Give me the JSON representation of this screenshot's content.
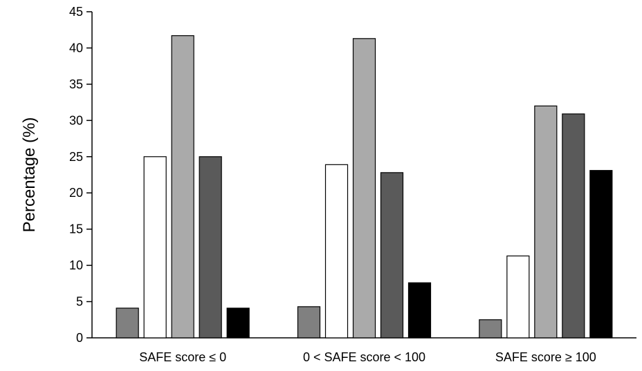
{
  "chart_data": {
    "type": "bar",
    "title": "",
    "xlabel": "",
    "ylabel": "Percentage  (%)",
    "ylim": [
      0,
      45
    ],
    "yticks": [
      0,
      5,
      10,
      15,
      20,
      25,
      30,
      35,
      40,
      45
    ],
    "grid": false,
    "legend": "none",
    "categories": [
      "SAFE score ≤ 0",
      "0 < SAFE score < 100",
      "SAFE score ≥ 100"
    ],
    "series": [
      {
        "color": "#808080",
        "values": [
          4.1,
          4.3,
          2.5
        ]
      },
      {
        "color": "#ffffff",
        "values": [
          25.0,
          23.9,
          11.3
        ]
      },
      {
        "color": "#aaaaaa",
        "values": [
          41.7,
          41.3,
          32.0
        ]
      },
      {
        "color": "#5a5a5a",
        "values": [
          25.0,
          22.8,
          30.9
        ]
      },
      {
        "color": "#000000",
        "values": [
          4.1,
          7.6,
          23.1
        ]
      }
    ]
  }
}
